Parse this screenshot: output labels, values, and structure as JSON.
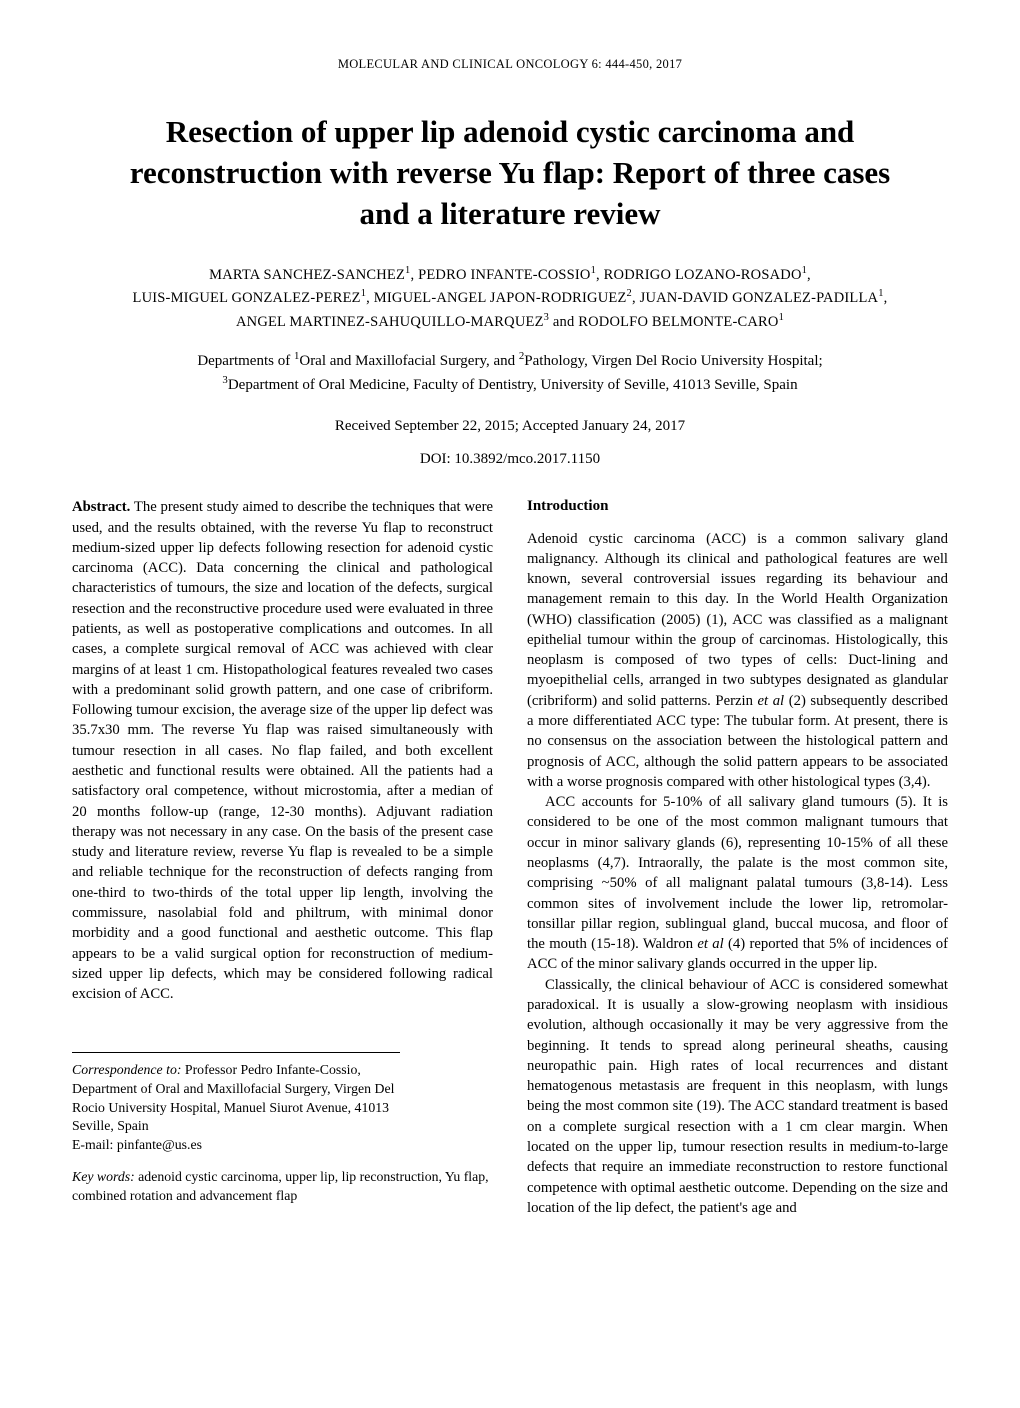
{
  "running_header": "MOLECULAR AND CLINICAL ONCOLOGY  6:  444-450,  2017",
  "title": "Resection of upper lip adenoid cystic carcinoma and reconstruction with reverse Yu flap: Report of three cases and a literature review",
  "authors_html": "MARTA SANCHEZ-SANCHEZ<sup>1</sup>,  PEDRO INFANTE-COSSIO<sup>1</sup>,  RODRIGO LOZANO-ROSADO<sup>1</sup>,<br>LUIS-MIGUEL GONZALEZ-PEREZ<sup>1</sup>,  MIGUEL-ANGEL JAPON-RODRIGUEZ<sup>2</sup>,  JUAN-DAVID GONZALEZ-PADILLA<sup>1</sup>,<br>ANGEL MARTINEZ-SAHUQUILLO-MARQUEZ<sup>3</sup>  and  RODOLFO BELMONTE-CARO<sup>1</sup>",
  "affiliations_html": "Departments of <sup>1</sup>Oral and Maxillofacial Surgery, and <sup>2</sup>Pathology, Virgen Del Rocio University Hospital;<br><sup>3</sup>Department of Oral Medicine, Faculty of Dentistry, University of Seville, 41013 Seville, Spain",
  "dates": "Received September 22, 2015;  Accepted January 24, 2017",
  "doi": "DOI: 10.3892/mco.2017.1150",
  "abstract_label": "Abstract.",
  "abstract_text": " The present study aimed to describe the techniques that were used, and the results obtained, with the reverse Yu flap to reconstruct medium-sized upper lip defects following resection for adenoid cystic carcinoma (ACC). Data concerning the clinical and pathological characteristics of tumours, the size and location of the defects, surgical resection and the reconstructive procedure used were evaluated in three patients, as well as postoperative complications and outcomes. In all cases, a complete surgical removal of ACC was achieved with clear margins of at least 1 cm. Histopathological features revealed two cases with a predominant solid growth pattern, and one case of cribriform. Following tumour excision, the average size of the upper lip defect was 35.7x30 mm. The reverse Yu flap was raised simultaneously with tumour resection in all cases. No flap failed, and both excellent aesthetic and functional results were obtained. All the patients had a satisfactory oral competence, without microstomia, after a median of 20 months follow-up (range, 12-30 months). Adjuvant radiation therapy was not necessary in any case. On the basis of the present case study and literature review, reverse Yu flap is revealed to be a simple and reliable technique for the reconstruction of defects ranging from one-third to two-thirds of the total upper lip length, involving the commissure, nasolabial fold and philtrum, with minimal donor morbidity and a good functional and aesthetic outcome. This flap appears to be a valid surgical option for reconstruction of medium-sized upper lip defects, which may be considered following radical excision of ACC.",
  "intro_heading": "Introduction",
  "intro_p1": "Adenoid cystic carcinoma (ACC) is a common salivary gland malignancy. Although its clinical and pathological features are well known, several controversial issues regarding its behaviour and management remain to this day. In the World Health Organization (WHO) classification (2005) (1), ACC was classified as a malignant epithelial tumour within the group of carcinomas. Histologically, this neoplasm is composed of two types of cells: Duct-lining and myoepithelial cells, arranged in two subtypes designated as glandular (cribriform) and solid patterns. Perzin et al (2) subsequently described a more differentiated ACC type: The tubular form. At present, there is no consensus on the association between the histological pattern and prognosis of ACC, although the solid pattern appears to be associated with a worse prognosis compared with other histological types (3,4).",
  "intro_p2": "ACC accounts for 5-10% of all salivary gland tumours (5). It is considered to be one of the most common malignant tumours that occur in minor salivary glands (6), representing 10-15% of all these neoplasms (4,7). Intraorally, the palate is the most common site, comprising ~50% of all malignant palatal tumours (3,8-14). Less common sites of involvement include the lower lip, retromolar-tonsillar pillar region, sublingual gland, buccal mucosa, and floor of the mouth (15-18). Waldron et al (4) reported that 5% of incidences of ACC of the minor salivary glands occurred in the upper lip.",
  "intro_p3": "Classically, the clinical behaviour of ACC is considered somewhat paradoxical. It is usually a slow-growing neoplasm with insidious evolution, although occasionally it may be very aggressive from the beginning. It tends to spread along perineural sheaths, causing neuropathic pain. High rates of local recurrences and distant hematogenous metastasis are frequent in this neoplasm, with lungs being the most common site (19). The ACC standard treatment is based on a complete surgical resection with a 1 cm clear margin. When located on the upper lip, tumour resection results in medium-to-large defects that require an immediate reconstruction to restore functional competence with optimal aesthetic outcome. Depending on the size and location of the lip defect, the patient's age and",
  "correspondence": {
    "label": "Correspondence to:",
    "text": " Professor Pedro Infante-Cossio, Department of Oral and Maxillofacial Surgery, Virgen Del Rocio University Hospital, Manuel Siurot Avenue, 41013 Seville, Spain",
    "email_label": "E-mail: ",
    "email": "pinfante@us.es"
  },
  "keywords": {
    "label": "Key words:",
    "text": " adenoid cystic carcinoma, upper lip, lip reconstruction, Yu flap, combined rotation and advancement flap"
  }
}
